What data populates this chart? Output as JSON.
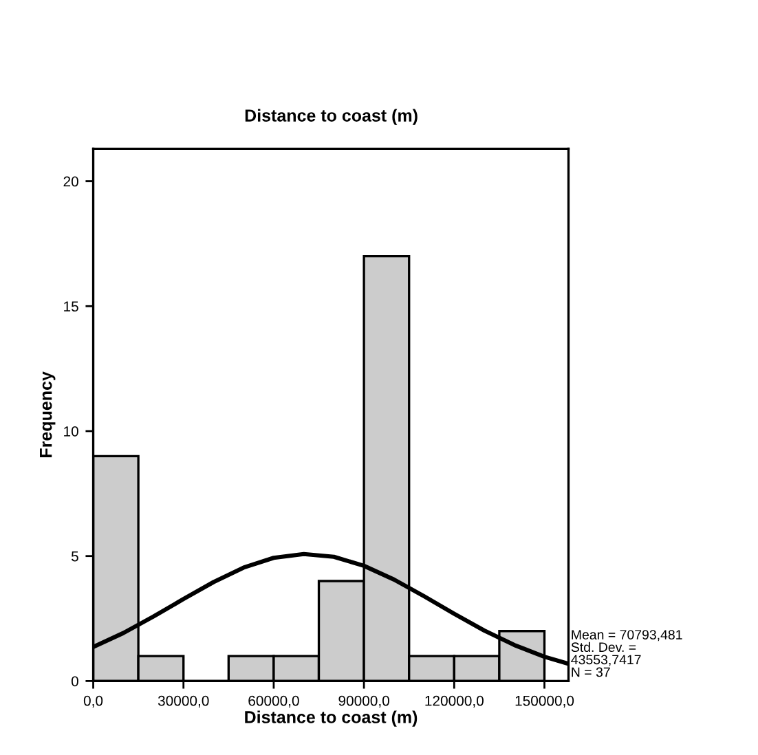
{
  "chart_data": {
    "type": "histogram",
    "title": "Distance to coast (m)",
    "xlabel": "Distance to coast (m)",
    "ylabel": "Frequency",
    "bins": [
      0,
      15000,
      30000,
      45000,
      60000,
      75000,
      90000,
      105000,
      120000,
      135000,
      150000
    ],
    "values": [
      9,
      1,
      0,
      1,
      1,
      4,
      17,
      1,
      1,
      2
    ],
    "color": "#cccccc",
    "series": [
      {
        "type": "line",
        "color": "#000000",
        "x": [
          0,
          10000,
          20000,
          30000,
          40000,
          50000,
          60000,
          70000,
          80000,
          90000,
          100000,
          110000,
          120000,
          130000,
          140000,
          150000,
          158000
        ],
        "values": [
          1.36,
          1.92,
          2.58,
          3.28,
          3.96,
          4.54,
          4.93,
          5.08,
          4.97,
          4.61,
          4.06,
          3.39,
          2.69,
          2.02,
          1.44,
          0.97,
          0.69
        ]
      }
    ],
    "xlim": [
      0,
      158000
    ],
    "ylim": [
      0,
      21.3
    ],
    "xticks": [
      {
        "value": 0,
        "label": "0,0"
      },
      {
        "value": 30000,
        "label": "30000,0"
      },
      {
        "value": 60000,
        "label": "60000,0"
      },
      {
        "value": 90000,
        "label": "90000,0"
      },
      {
        "value": 120000,
        "label": "120000,0"
      },
      {
        "value": 150000,
        "label": "150000,0"
      }
    ],
    "yticks": [
      0,
      5,
      10,
      15,
      20
    ],
    "annotations": [
      "Mean = 70793,481",
      "Std. Dev. =\n43553,7417",
      "N = 37"
    ],
    "grid": false
  }
}
